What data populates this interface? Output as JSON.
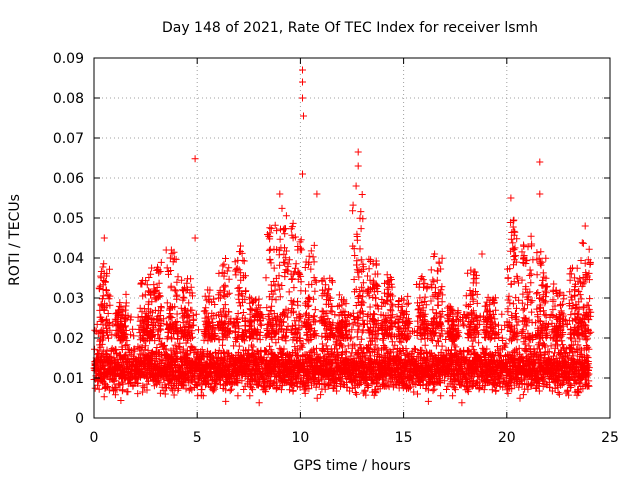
{
  "chart_data": {
    "type": "scatter",
    "title": "Day 148 of 2021, Rate Of TEC Index for receiver lsmh",
    "xlabel": "GPS time / hours",
    "ylabel": "ROTI / TECUs",
    "xlim": [
      0,
      25
    ],
    "ylim": [
      0,
      0.09
    ],
    "xticks": [
      0,
      5,
      10,
      15,
      20,
      25
    ],
    "xtick_labels": [
      "0",
      "5",
      "10",
      "15",
      "20",
      "25"
    ],
    "yticks": [
      0,
      0.01,
      0.02,
      0.03,
      0.04,
      0.05,
      0.06,
      0.07,
      0.08,
      0.09
    ],
    "ytick_labels": [
      "0",
      "0.01",
      "0.02",
      "0.03",
      "0.04",
      "0.05",
      "0.06",
      "0.07",
      "0.08",
      "0.09"
    ],
    "grid": true,
    "marker": "+",
    "marker_color": "#ff0000",
    "series": [
      {
        "name": "ROTI",
        "x_range": [
          0,
          24
        ],
        "baseline_band": [
          0.005,
          0.02
        ],
        "notable_points": [
          {
            "x": 10.1,
            "y": 0.087
          },
          {
            "x": 10.1,
            "y": 0.084
          },
          {
            "x": 10.1,
            "y": 0.08
          },
          {
            "x": 10.15,
            "y": 0.0755
          },
          {
            "x": 4.9,
            "y": 0.0648
          },
          {
            "x": 12.8,
            "y": 0.0665
          },
          {
            "x": 12.8,
            "y": 0.063
          },
          {
            "x": 21.6,
            "y": 0.064
          },
          {
            "x": 10.1,
            "y": 0.061
          },
          {
            "x": 12.7,
            "y": 0.058
          },
          {
            "x": 9.0,
            "y": 0.056
          },
          {
            "x": 10.8,
            "y": 0.056
          },
          {
            "x": 20.2,
            "y": 0.055
          },
          {
            "x": 21.6,
            "y": 0.056
          },
          {
            "x": 0.5,
            "y": 0.045
          },
          {
            "x": 23.8,
            "y": 0.048
          },
          {
            "x": 4.9,
            "y": 0.045
          },
          {
            "x": 3.5,
            "y": 0.042
          },
          {
            "x": 7.1,
            "y": 0.043
          },
          {
            "x": 16.5,
            "y": 0.041
          },
          {
            "x": 18.8,
            "y": 0.041
          }
        ],
        "spikes": [
          {
            "x": 0.5,
            "y": 0.04
          },
          {
            "x": 1.3,
            "y": 0.03
          },
          {
            "x": 2.5,
            "y": 0.035
          },
          {
            "x": 3.0,
            "y": 0.038
          },
          {
            "x": 3.8,
            "y": 0.042
          },
          {
            "x": 4.5,
            "y": 0.035
          },
          {
            "x": 5.6,
            "y": 0.032
          },
          {
            "x": 6.3,
            "y": 0.04
          },
          {
            "x": 7.1,
            "y": 0.042
          },
          {
            "x": 7.8,
            "y": 0.03
          },
          {
            "x": 8.6,
            "y": 0.048
          },
          {
            "x": 9.2,
            "y": 0.052
          },
          {
            "x": 9.8,
            "y": 0.05
          },
          {
            "x": 10.5,
            "y": 0.045
          },
          {
            "x": 11.3,
            "y": 0.035
          },
          {
            "x": 12.0,
            "y": 0.03
          },
          {
            "x": 12.8,
            "y": 0.055
          },
          {
            "x": 13.5,
            "y": 0.04
          },
          {
            "x": 14.2,
            "y": 0.036
          },
          {
            "x": 15.0,
            "y": 0.03
          },
          {
            "x": 15.9,
            "y": 0.035
          },
          {
            "x": 16.6,
            "y": 0.04
          },
          {
            "x": 17.4,
            "y": 0.028
          },
          {
            "x": 18.3,
            "y": 0.038
          },
          {
            "x": 19.2,
            "y": 0.03
          },
          {
            "x": 20.3,
            "y": 0.05
          },
          {
            "x": 21.0,
            "y": 0.045
          },
          {
            "x": 21.7,
            "y": 0.042
          },
          {
            "x": 22.5,
            "y": 0.033
          },
          {
            "x": 23.3,
            "y": 0.038
          },
          {
            "x": 23.8,
            "y": 0.045
          }
        ]
      }
    ]
  }
}
